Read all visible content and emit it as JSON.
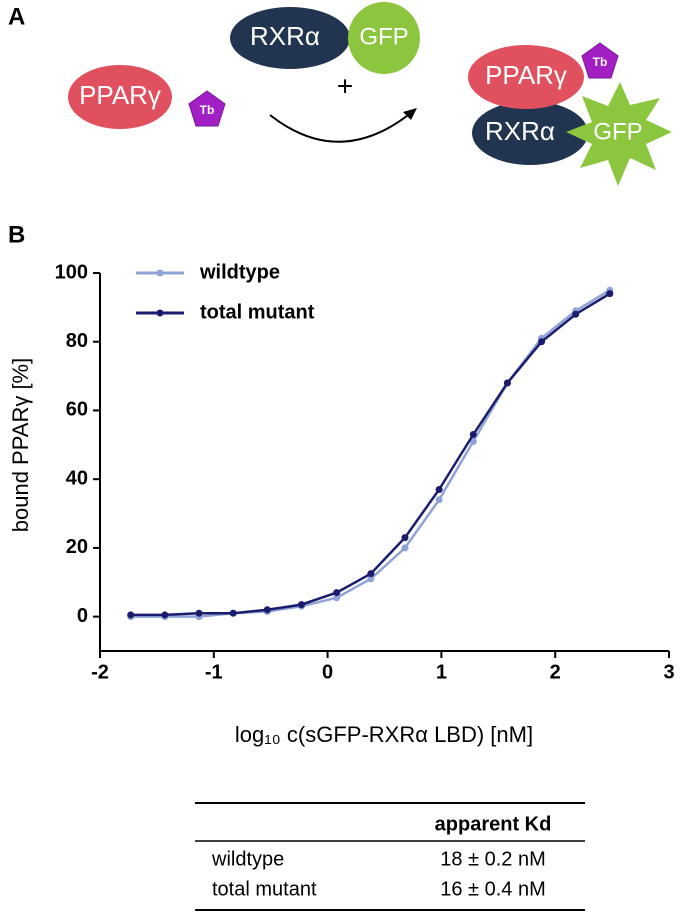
{
  "diagram": {
    "label": "A",
    "left": {
      "protein": "PPARγ",
      "tag": "Tb"
    },
    "top": {
      "protein": "RXRα",
      "tag": "GFP",
      "plus": "+"
    },
    "right": {
      "protein": "PPARγ",
      "tag": "Tb",
      "partner": "RXRα",
      "partner_tag": "GFP"
    }
  },
  "chart_data": {
    "type": "line",
    "label": "B",
    "x_label": "log₁₀ c(sGFP-RXRα LBD) [nM]",
    "y_label": "bound PPARγ [%]",
    "x": [
      -1.73,
      -1.43,
      -1.13,
      -0.83,
      -0.53,
      -0.23,
      0.08,
      0.38,
      0.68,
      0.98,
      1.28,
      1.58,
      1.88,
      2.18,
      2.48
    ],
    "series": [
      {
        "name": "wildtype",
        "color": "#8fa3d6",
        "values": [
          0,
          0,
          0,
          1,
          1.5,
          3,
          5.5,
          11,
          20,
          34,
          51,
          68,
          81,
          89,
          95
        ]
      },
      {
        "name": "total mutant",
        "color": "#1c1c6e",
        "values": [
          0.5,
          0.5,
          1,
          1,
          2,
          3.5,
          7,
          12.5,
          23,
          37,
          53,
          68,
          80,
          88,
          94
        ]
      }
    ],
    "xlim": [
      -2,
      3
    ],
    "xticks": [
      -2,
      -1,
      0,
      1,
      2,
      3
    ],
    "ylim": [
      -10,
      100
    ],
    "yticks": [
      0,
      20,
      40,
      60,
      80,
      100
    ],
    "legend": "top-left"
  },
  "table": {
    "header": "apparent Kd",
    "rows": [
      [
        "wildtype",
        "18 ± 0.2 nM"
      ],
      [
        "total mutant",
        "16 ± 0.4 nM"
      ]
    ]
  }
}
